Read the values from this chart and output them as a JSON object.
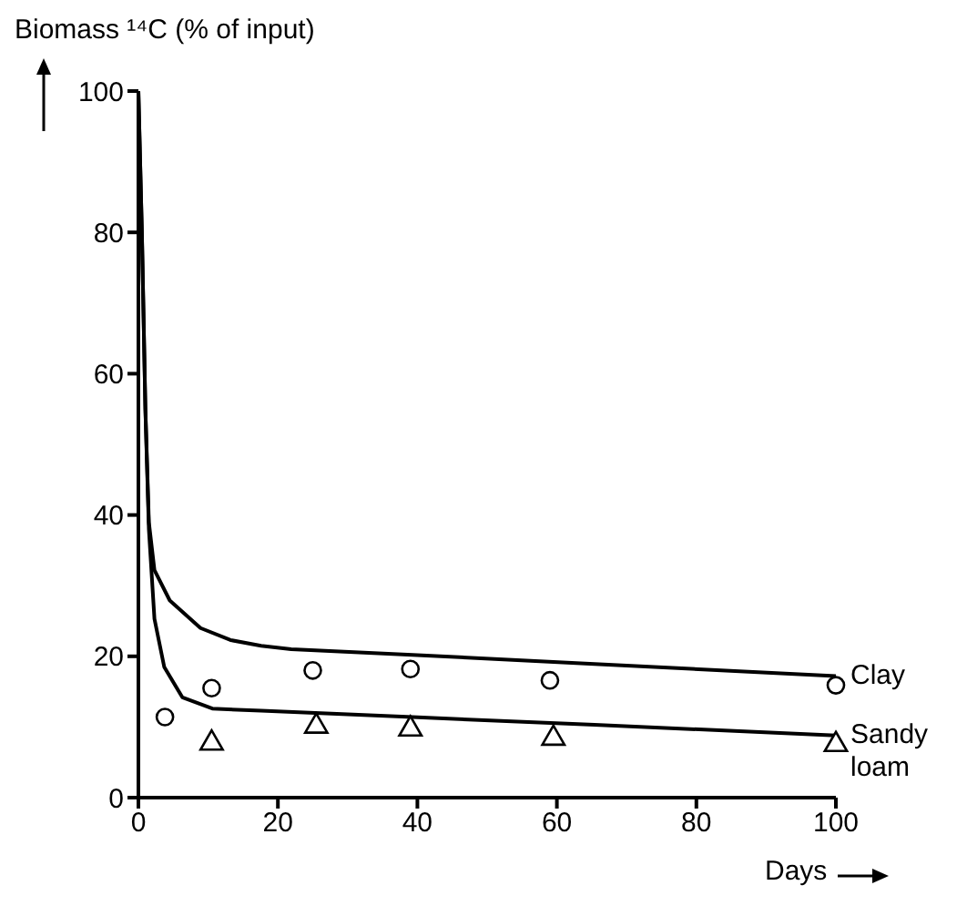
{
  "chart_data": {
    "type": "line",
    "ylabel": "Biomass ¹⁴C (% of input)",
    "xlabel": "Days",
    "xlim": [
      0,
      100
    ],
    "ylim": [
      0,
      100
    ],
    "xticks": [
      0,
      20,
      40,
      60,
      80,
      100
    ],
    "yticks": [
      0,
      20,
      40,
      60,
      80,
      100
    ],
    "grid": false,
    "legend": false,
    "line_style": "solid",
    "series": [
      {
        "name": "Clay",
        "color": "#000000",
        "marker": "none",
        "x": [
          0,
          0.5,
          1,
          1.5,
          2.3,
          4.5,
          8.9,
          13.2,
          17.6,
          21.9,
          39.3,
          65.4,
          100
        ],
        "values": [
          100,
          80,
          55,
          39,
          32.2,
          27.9,
          24,
          22.3,
          21.5,
          21,
          20.2,
          18.9,
          17.2
        ]
      },
      {
        "name": "Sandy loam",
        "color": "#000000",
        "marker": "none",
        "x": [
          0,
          0.5,
          1,
          1.5,
          2.3,
          3.7,
          6.3,
          10.6,
          17.6,
          39.3,
          65.4,
          100
        ],
        "values": [
          100,
          80,
          55,
          38,
          25.3,
          18.5,
          14.2,
          12.6,
          12.3,
          11.4,
          10.3,
          8.8
        ]
      },
      {
        "type": "scatter",
        "color": "#000000",
        "marker": "circle",
        "x": [
          3.8,
          10.5,
          25,
          39,
          59,
          100
        ],
        "values": [
          11.4,
          15.5,
          18,
          18.2,
          16.6,
          15.9
        ]
      },
      {
        "type": "scatter",
        "color": "#000000",
        "marker": "triangle",
        "x": [
          10.5,
          25.5,
          39,
          59.5,
          100
        ],
        "values": [
          7.7,
          10.1,
          9.7,
          8.4,
          7.5
        ]
      }
    ]
  }
}
